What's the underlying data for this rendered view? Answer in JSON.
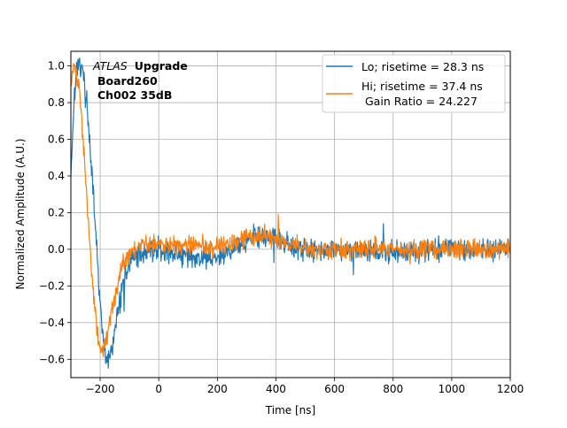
{
  "chart_data": {
    "type": "line",
    "xlabel": "Time [ns]",
    "ylabel": "Normalized Amplitude (A.U.)",
    "xlim": [
      -300,
      1200
    ],
    "ylim": [
      -0.7,
      1.08
    ],
    "xticks": [
      -200,
      0,
      200,
      400,
      600,
      800,
      1000,
      1200
    ],
    "yticks": [
      -0.6,
      -0.4,
      -0.2,
      0.0,
      0.2,
      0.4,
      0.6,
      0.8,
      1.0
    ],
    "grid": true,
    "legend_position": "top-right",
    "annotation": {
      "atlas": "ATLAS",
      "upgrade": "Upgrade",
      "board": "Board260",
      "channel": "Ch002 35dB"
    },
    "series": [
      {
        "name": "Lo; risetime = 28.3 ns",
        "color": "#1f77b4",
        "noise": 0.03,
        "points": [
          [
            -300,
            0.4
          ],
          [
            -290,
            0.8
          ],
          [
            -280,
            1.0
          ],
          [
            -270,
            1.0
          ],
          [
            -260,
            0.97
          ],
          [
            -250,
            0.85
          ],
          [
            -240,
            0.7
          ],
          [
            -230,
            0.45
          ],
          [
            -220,
            0.2
          ],
          [
            -210,
            -0.05
          ],
          [
            -200,
            -0.3
          ],
          [
            -190,
            -0.5
          ],
          [
            -180,
            -0.6
          ],
          [
            -170,
            -0.6
          ],
          [
            -160,
            -0.55
          ],
          [
            -150,
            -0.45
          ],
          [
            -140,
            -0.35
          ],
          [
            -130,
            -0.25
          ],
          [
            -120,
            -0.17
          ],
          [
            -110,
            -0.12
          ],
          [
            -100,
            -0.08
          ],
          [
            -80,
            -0.04
          ],
          [
            -60,
            -0.02
          ],
          [
            -40,
            0.0
          ],
          [
            -20,
            0.0
          ],
          [
            0,
            0.0
          ],
          [
            50,
            -0.02
          ],
          [
            100,
            -0.04
          ],
          [
            150,
            -0.05
          ],
          [
            200,
            -0.05
          ],
          [
            250,
            0.0
          ],
          [
            300,
            0.05
          ],
          [
            350,
            0.07
          ],
          [
            400,
            0.05
          ],
          [
            450,
            0.02
          ],
          [
            500,
            0.0
          ],
          [
            600,
            0.0
          ],
          [
            700,
            0.0
          ],
          [
            800,
            -0.02
          ],
          [
            900,
            0.0
          ],
          [
            1000,
            0.0
          ],
          [
            1100,
            0.0
          ],
          [
            1200,
            0.0
          ]
        ]
      },
      {
        "name": "Hi; risetime = 37.4 ns",
        "color": "#ff7f0e",
        "noise": 0.025,
        "points": [
          [
            -300,
            0.9
          ],
          [
            -290,
            1.0
          ],
          [
            -280,
            0.95
          ],
          [
            -270,
            0.85
          ],
          [
            -260,
            0.65
          ],
          [
            -250,
            0.4
          ],
          [
            -240,
            0.15
          ],
          [
            -230,
            -0.1
          ],
          [
            -220,
            -0.3
          ],
          [
            -210,
            -0.45
          ],
          [
            -200,
            -0.55
          ],
          [
            -190,
            -0.55
          ],
          [
            -180,
            -0.5
          ],
          [
            -170,
            -0.42
          ],
          [
            -160,
            -0.33
          ],
          [
            -150,
            -0.25
          ],
          [
            -140,
            -0.18
          ],
          [
            -130,
            -0.12
          ],
          [
            -120,
            -0.07
          ],
          [
            -110,
            -0.05
          ],
          [
            -100,
            -0.02
          ],
          [
            -80,
            0.0
          ],
          [
            -60,
            0.02
          ],
          [
            -40,
            0.03
          ],
          [
            -20,
            0.03
          ],
          [
            0,
            0.03
          ],
          [
            100,
            0.02
          ],
          [
            200,
            0.02
          ],
          [
            250,
            0.03
          ],
          [
            300,
            0.06
          ],
          [
            350,
            0.08
          ],
          [
            400,
            0.06
          ],
          [
            450,
            0.02
          ],
          [
            500,
            0.0
          ],
          [
            600,
            0.0
          ],
          [
            800,
            0.0
          ],
          [
            1000,
            0.0
          ],
          [
            1200,
            0.0
          ]
        ]
      }
    ],
    "legend_extra": "Gain Ratio = 24.227"
  }
}
